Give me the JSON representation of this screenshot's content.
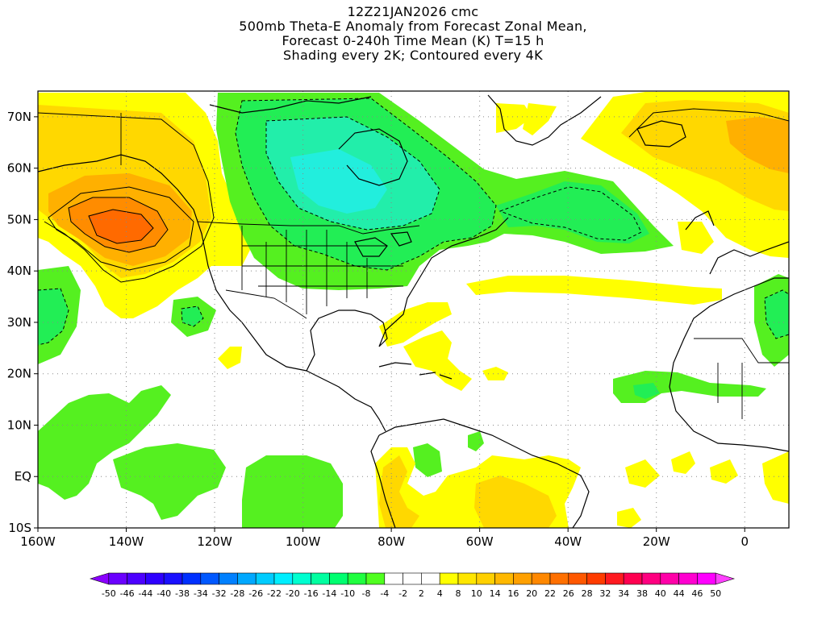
{
  "title": {
    "line1": "12Z21JAN2026 cmc",
    "line2": "500mb Theta-E Anomaly from Forecast Zonal Mean,",
    "line3": "Forecast 0-240h Time Mean (K) T=15 h",
    "line4": "Shading every 2K; Contoured every 4K"
  },
  "axes": {
    "lat_labels": [
      "70N",
      "60N",
      "50N",
      "40N",
      "30N",
      "20N",
      "10N",
      "EQ",
      "10S"
    ],
    "lat_values": [
      70,
      60,
      50,
      40,
      30,
      20,
      10,
      0,
      -10
    ],
    "lon_labels": [
      "160W",
      "140W",
      "120W",
      "100W",
      "80W",
      "60W",
      "40W",
      "20W",
      "0"
    ],
    "lon_values": [
      -160,
      -140,
      -120,
      -100,
      -80,
      -60,
      -40,
      -20,
      0
    ],
    "lon_range": [
      -160,
      10
    ],
    "lat_range": [
      -10,
      75
    ],
    "grid": "dotted"
  },
  "colorbar": {
    "labels": [
      "-50",
      "-46",
      "-44",
      "-40",
      "-38",
      "-34",
      "-32",
      "-28",
      "-26",
      "-22",
      "-20",
      "-16",
      "-14",
      "-10",
      "-8",
      "-4",
      "-2",
      "2",
      "4",
      "8",
      "10",
      "14",
      "16",
      "20",
      "22",
      "26",
      "28",
      "32",
      "34",
      "38",
      "40",
      "44",
      "46",
      "50"
    ],
    "colors": [
      "#8a00ff",
      "#6a00ff",
      "#4c00ff",
      "#2e00ff",
      "#1a10ff",
      "#0030ff",
      "#0058ff",
      "#0080ff",
      "#00a8ff",
      "#00ccff",
      "#00eeff",
      "#00ffd0",
      "#00ffa0",
      "#00ff70",
      "#20ff40",
      "#50ff20",
      "#ffffff",
      "#ffffff",
      "#ffffff",
      "#ffff00",
      "#ffe600",
      "#ffd000",
      "#ffb800",
      "#ffa000",
      "#ff8800",
      "#ff7000",
      "#ff5800",
      "#ff3c00",
      "#ff1a20",
      "#ff0050",
      "#ff0080",
      "#ff00a8",
      "#ff00d0",
      "#ff00ff",
      "#ff40ff"
    ]
  },
  "palette": {
    "green": "#55f020",
    "green2": "#22ee55",
    "cyan_green": "#22eeaa",
    "cyan": "#22eedd",
    "yellow": "#ffff00",
    "gold": "#ffd800",
    "orange": "#ffb000",
    "dark_orange": "#ff8c00",
    "red_orange": "#ff6a00"
  }
}
